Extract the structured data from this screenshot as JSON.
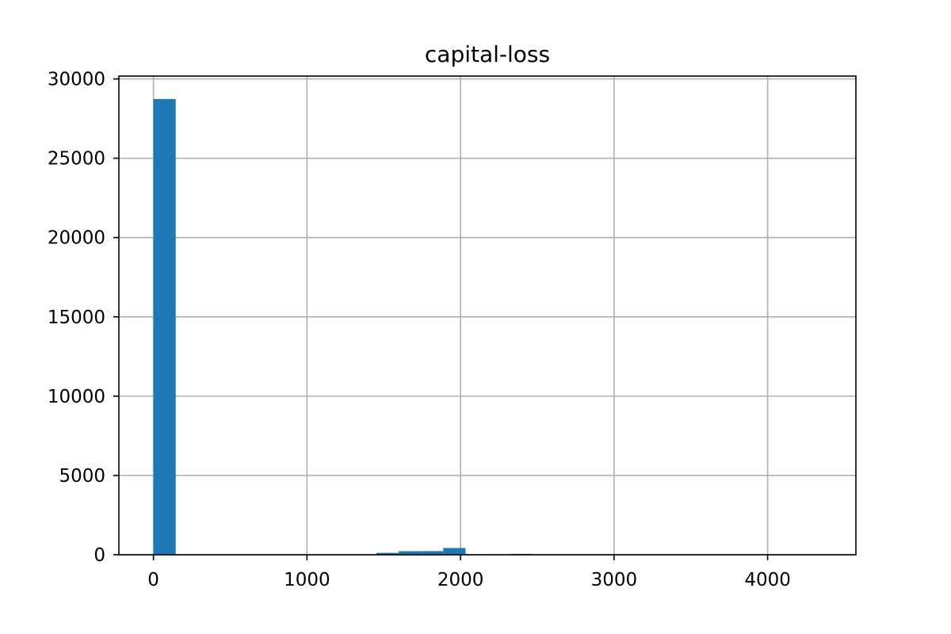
{
  "chart_data": {
    "type": "bar",
    "title": "capital-loss",
    "xlabel": "",
    "ylabel": "",
    "bin_edges": [
      0,
      145.2,
      290.4,
      435.6,
      580.8,
      726.0,
      871.2,
      1016.4,
      1161.6,
      1306.8,
      1452.0,
      1597.2,
      1742.4,
      1887.6,
      2032.8,
      2178.0,
      2323.2,
      2468.4,
      2613.6,
      2758.8,
      2904.0,
      3049.2,
      3194.4,
      3339.6,
      3484.8,
      3630.0,
      3775.2,
      3920.4,
      4065.6,
      4210.8,
      4356.0
    ],
    "values": [
      28735,
      0,
      0,
      0,
      0,
      0,
      0,
      0,
      5,
      3,
      120,
      225,
      230,
      425,
      30,
      10,
      55,
      5,
      0,
      0,
      0,
      0,
      0,
      0,
      0,
      0,
      0,
      0,
      0,
      2
    ],
    "xlim": [
      -225,
      4575
    ],
    "ylim": [
      0,
      30180
    ],
    "xticks": [
      0,
      1000,
      2000,
      3000,
      4000
    ],
    "yticks": [
      0,
      5000,
      10000,
      15000,
      20000,
      25000,
      30000
    ],
    "xtick_labels": [
      "0",
      "1000",
      "2000",
      "3000",
      "4000"
    ],
    "ytick_labels": [
      "0",
      "5000",
      "10000",
      "15000",
      "20000",
      "25000",
      "30000"
    ],
    "grid": true,
    "bar_color": "#1f77b4",
    "grid_color": "#b0b0b0"
  }
}
